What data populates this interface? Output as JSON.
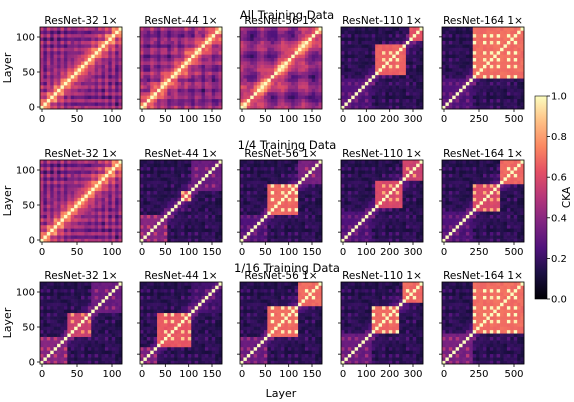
{
  "chart_data": {
    "type": "heatmap",
    "rows": [
      {
        "title": "All Training Data",
        "panels": [
          {
            "title": "ResNet-32 1×",
            "xticks": [
              "0",
              "50",
              "100"
            ],
            "yticks": [
              "0",
              "50",
              "100"
            ],
            "pattern": "diagonal_grid",
            "period": 0.08
          },
          {
            "title": "ResNet-44 1×",
            "xticks": [
              "0",
              "50",
              "100",
              "150"
            ],
            "yticks": [],
            "pattern": "diagonal_grid",
            "period": 0.06
          },
          {
            "title": "ResNet-56 1×",
            "xticks": [
              "0",
              "50",
              "100",
              "150"
            ],
            "yticks": [],
            "pattern": "diagonal_grid",
            "period": 0.05
          },
          {
            "title": "ResNet-110 1×",
            "xticks": [
              "0",
              "100",
              "200",
              "300"
            ],
            "yticks": [],
            "pattern": "blocks",
            "blocks": [
              [
                0.0,
                0.34,
                0.35
              ],
              [
                0.4,
                0.78,
                0.95
              ],
              [
                0.8,
                1.0,
                0.9
              ]
            ]
          },
          {
            "title": "ResNet-164 1×",
            "xticks": [
              "0",
              "250",
              "500"
            ],
            "yticks": [],
            "pattern": "blocks",
            "blocks": [
              [
                0.0,
                0.34,
                0.35
              ],
              [
                0.36,
                1.0,
                0.99
              ]
            ]
          }
        ]
      },
      {
        "title": "1/4 Training Data",
        "panels": [
          {
            "title": "ResNet-32 1×",
            "xticks": [
              "0",
              "50",
              "100"
            ],
            "yticks": [
              "0",
              "50",
              "100"
            ],
            "pattern": "diagonal_grid",
            "period": 0.08
          },
          {
            "title": "ResNet-44 1×",
            "xticks": [
              "0",
              "50",
              "100",
              "150"
            ],
            "yticks": [],
            "pattern": "blocks",
            "blocks": [
              [
                0.0,
                0.32,
                0.55
              ],
              [
                0.46,
                0.6,
                0.9
              ],
              [
                0.6,
                1.0,
                0.45
              ]
            ]
          },
          {
            "title": "ResNet-56 1×",
            "xticks": [
              "0",
              "50",
              "100",
              "150"
            ],
            "yticks": [],
            "pattern": "blocks",
            "blocks": [
              [
                0.0,
                0.3,
                0.35
              ],
              [
                0.32,
                0.68,
                0.97
              ],
              [
                0.7,
                1.0,
                0.5
              ]
            ]
          },
          {
            "title": "ResNet-110 1×",
            "xticks": [
              "0",
              "100",
              "200",
              "300"
            ],
            "yticks": [],
            "pattern": "blocks",
            "blocks": [
              [
                0.0,
                0.36,
                0.35
              ],
              [
                0.4,
                0.72,
                0.85
              ],
              [
                0.74,
                1.0,
                0.8
              ]
            ]
          },
          {
            "title": "ResNet-164 1×",
            "xticks": [
              "0",
              "250",
              "500"
            ],
            "yticks": [],
            "pattern": "blocks",
            "blocks": [
              [
                0.0,
                0.34,
                0.35
              ],
              [
                0.36,
                0.7,
                0.85
              ],
              [
                0.7,
                1.0,
                0.97
              ]
            ]
          }
        ]
      },
      {
        "title": "1/16 Training Data",
        "panels": [
          {
            "title": "ResNet-32 1×",
            "xticks": [
              "0",
              "50",
              "100"
            ],
            "yticks": [
              "0",
              "50",
              "100"
            ],
            "pattern": "blocks",
            "blocks": [
              [
                0.0,
                0.3,
                0.55
              ],
              [
                0.3,
                0.62,
                0.8
              ],
              [
                0.62,
                1.0,
                0.45
              ]
            ]
          },
          {
            "title": "ResNet-44 1×",
            "xticks": [
              "0",
              "50",
              "100",
              "150"
            ],
            "yticks": [],
            "pattern": "blocks",
            "blocks": [
              [
                0.0,
                0.2,
                0.5
              ],
              [
                0.2,
                0.62,
                0.92
              ],
              [
                0.62,
                1.0,
                0.3
              ]
            ]
          },
          {
            "title": "ResNet-56 1×",
            "xticks": [
              "0",
              "50",
              "100",
              "150"
            ],
            "yticks": [],
            "pattern": "blocks",
            "blocks": [
              [
                0.0,
                0.32,
                0.45
              ],
              [
                0.32,
                0.68,
                0.98
              ],
              [
                0.7,
                1.0,
                0.98
              ]
            ]
          },
          {
            "title": "ResNet-110 1×",
            "xticks": [
              "0",
              "100",
              "200",
              "300"
            ],
            "yticks": [],
            "pattern": "blocks",
            "blocks": [
              [
                0.0,
                0.34,
                0.45
              ],
              [
                0.36,
                0.7,
                0.97
              ],
              [
                0.72,
                1.0,
                0.97
              ]
            ]
          },
          {
            "title": "ResNet-164 1×",
            "xticks": [
              "0",
              "250",
              "500"
            ],
            "yticks": [],
            "pattern": "blocks",
            "blocks": [
              [
                0.0,
                0.34,
                0.5
              ],
              [
                0.36,
                1.0,
                0.99
              ]
            ]
          }
        ]
      }
    ],
    "ylabel": "Layer",
    "xlabel": "Layer",
    "colorbar": {
      "label": "CKA",
      "ticks": [
        "0.0",
        "0.2",
        "0.4",
        "0.6",
        "0.8",
        "1.0"
      ],
      "range": [
        0,
        1
      ]
    },
    "colormap": "magma"
  }
}
